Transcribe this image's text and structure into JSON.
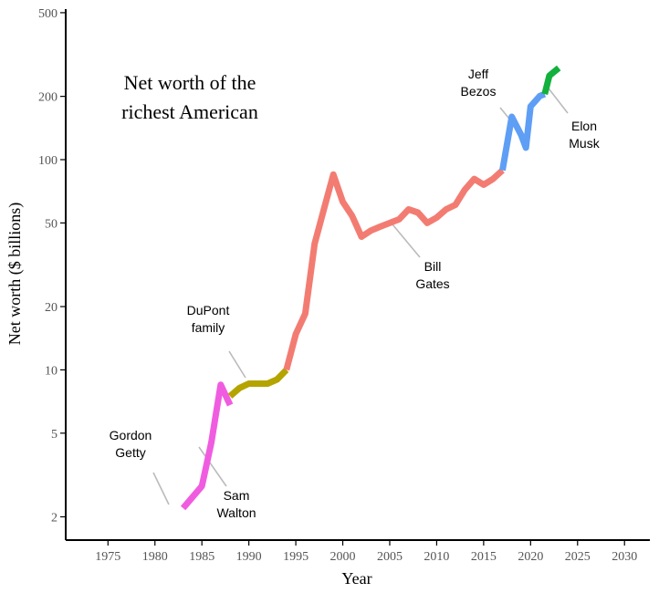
{
  "chart_data": {
    "type": "line",
    "title_lines": [
      "Net worth of the",
      "richest American"
    ],
    "xlabel": "Year",
    "ylabel": "Net worth ($ billions)",
    "xlim": [
      1970.5,
      2032.7
    ],
    "ylim": [
      1.55,
      520
    ],
    "yscale": "log",
    "x_ticks": [
      1975,
      1980,
      1985,
      1990,
      1995,
      2000,
      2005,
      2010,
      2015,
      2020,
      2025,
      2030
    ],
    "x_tick_labels": [
      "1975",
      "1980",
      "1985",
      "1990",
      "1995",
      "2000",
      "2005",
      "2010",
      "2015",
      "2020",
      "2025",
      "2030"
    ],
    "y_ticks": [
      2,
      5,
      10,
      20,
      50,
      100,
      200,
      500
    ],
    "y_tick_labels": [
      "2",
      "5",
      "10",
      "20",
      "50",
      "100",
      "200",
      "500"
    ],
    "grid": false,
    "legend": "none",
    "series": [
      {
        "color": "#f05ce0",
        "x": [
          1983,
          1985,
          1986,
          1987,
          1988
        ],
        "y": [
          2.2,
          2.8,
          4.5,
          8.5,
          6.8
        ]
      },
      {
        "color": "#b5a300",
        "x": [
          1988,
          1989,
          1990,
          1991,
          1992,
          1993,
          1994
        ],
        "y": [
          7.5,
          8.2,
          8.6,
          8.6,
          8.6,
          9.0,
          10.0
        ]
      },
      {
        "color": "#f37c72",
        "x": [
          1994,
          1995,
          1996,
          1997,
          1998,
          1999,
          2000,
          2001,
          2002,
          2003,
          2004,
          2005,
          2006,
          2007,
          2008,
          2009,
          2010,
          2011,
          2012,
          2013,
          2014,
          2015,
          2016,
          2017
        ],
        "y": [
          10.0,
          14.8,
          18.5,
          39.8,
          58.4,
          85.0,
          63.0,
          54.0,
          43.0,
          46.0,
          48.0,
          50.0,
          52.0,
          58.0,
          56.0,
          50.0,
          53.0,
          58.0,
          61.0,
          72.0,
          81.0,
          76.0,
          81.0,
          89.0
        ]
      },
      {
        "color": "#5e9ef5",
        "x": [
          2017,
          2018,
          2019,
          2019.5,
          2020,
          2021,
          2021.5
        ],
        "y": [
          89.0,
          160.0,
          131.0,
          114.0,
          179.0,
          201.0,
          205.0
        ]
      },
      {
        "color": "#12b13e",
        "x": [
          2021.5,
          2022,
          2023
        ],
        "y": [
          205.0,
          251.0,
          273.0
        ]
      }
    ],
    "annotations": [
      {
        "text_lines": [
          "Gordon",
          "Getty"
        ],
        "x": 1983,
        "y": 2.2
      },
      {
        "text_lines": [
          "Sam",
          "Walton"
        ],
        "x": 1986,
        "y": 4.5
      },
      {
        "text_lines": [
          "DuPont",
          "family"
        ],
        "x": 1991,
        "y": 8.6
      },
      {
        "text_lines": [
          "Bill",
          "Gates"
        ],
        "x": 2006,
        "y": 52.0
      },
      {
        "text_lines": [
          "Jeff",
          "Bezos"
        ],
        "x": 2019,
        "y": 131.0
      },
      {
        "text_lines": [
          "Elon",
          "Musk"
        ],
        "x": 2022,
        "y": 251.0
      }
    ]
  }
}
